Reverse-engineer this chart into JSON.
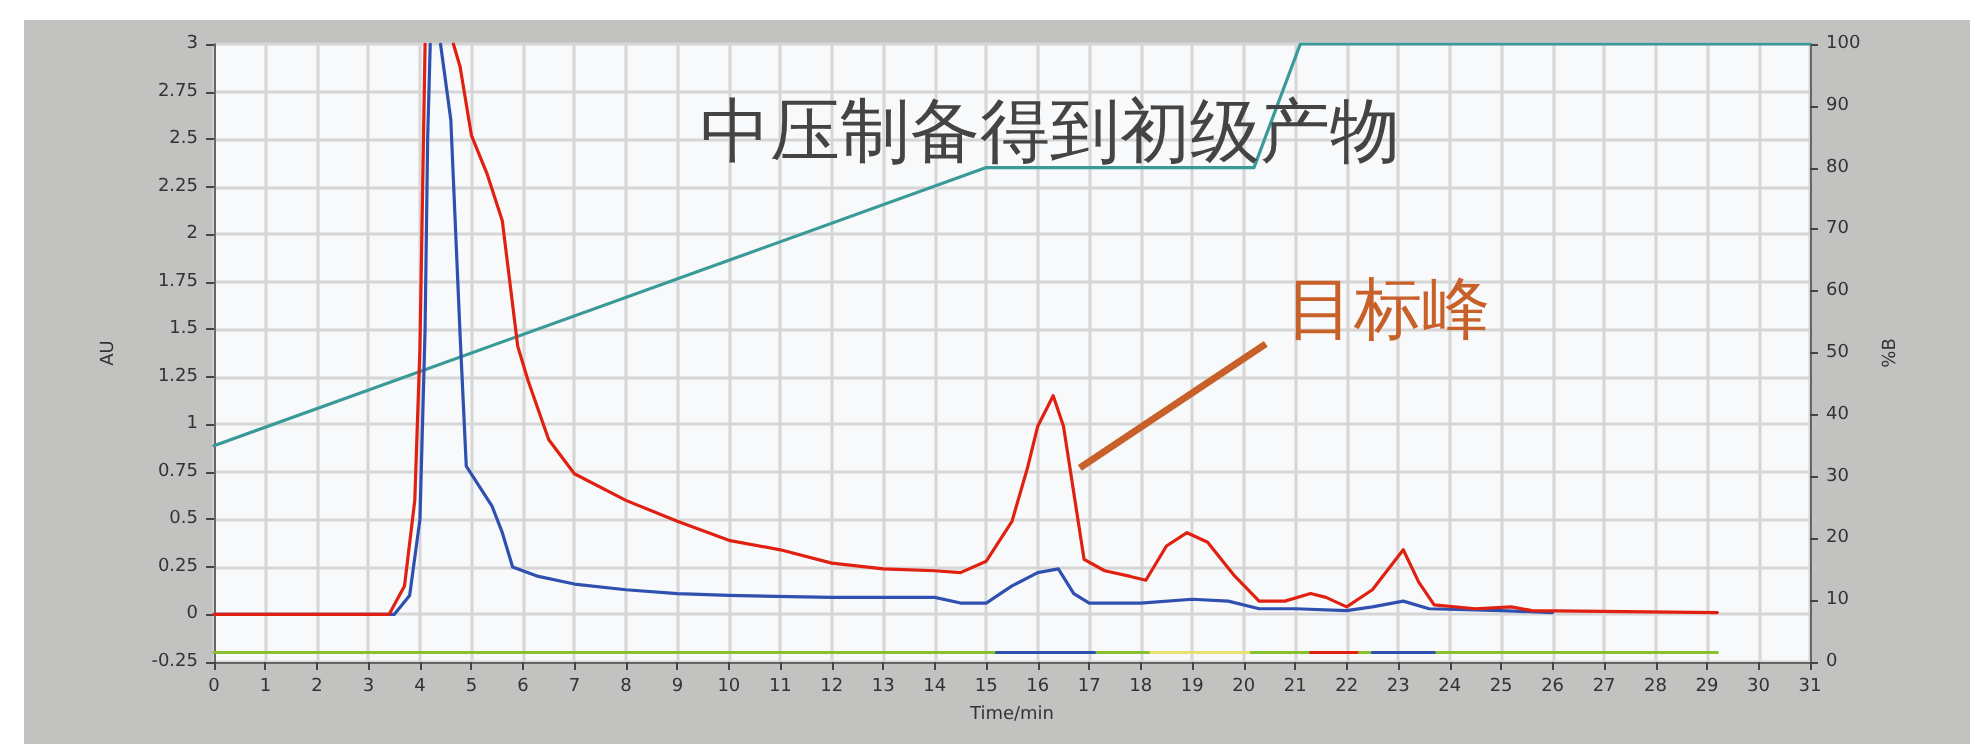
{
  "chart_data": {
    "type": "line",
    "title": "中压制备得到初级产物",
    "xlabel": "Time/min",
    "ylabel": "AU",
    "y2label": "%B",
    "xlim": [
      0,
      31
    ],
    "xticks": [
      0,
      1,
      2,
      3,
      4,
      5,
      6,
      7,
      8,
      9,
      10,
      11,
      12,
      13,
      14,
      15,
      16,
      17,
      18,
      19,
      20,
      21,
      22,
      23,
      24,
      25,
      26,
      27,
      28,
      29,
      30,
      31
    ],
    "ylim": [
      -0.25,
      3
    ],
    "yticks": [
      -0.25,
      0,
      0.25,
      0.5,
      0.75,
      1,
      1.25,
      1.5,
      1.75,
      2,
      2.25,
      2.5,
      2.75,
      3
    ],
    "y2lim": [
      0,
      100
    ],
    "y2ticks": [
      0,
      10,
      20,
      30,
      40,
      50,
      60,
      70,
      80,
      90,
      100
    ],
    "grid": true,
    "annotations": [
      {
        "text": "目标峰",
        "x": 16.7,
        "y": 0.75
      }
    ],
    "series": [
      {
        "color": "#3a9a98",
        "axis": "y2",
        "x": [
          0,
          15,
          20.2,
          21.1,
          31
        ],
        "values": [
          35,
          80,
          80,
          100,
          100
        ]
      },
      {
        "color": "#88c030",
        "x": [
          0,
          15.2,
          15.21,
          17.1,
          18.2,
          18.21,
          20.1,
          21.3,
          21.31,
          22.2,
          22.5,
          22.51,
          23.7,
          29.2
        ],
        "values": [
          -0.2,
          -0.2,
          null,
          -0.2,
          -0.2,
          null,
          -0.2,
          -0.2,
          null,
          -0.2,
          -0.2,
          null,
          -0.2,
          -0.2
        ]
      },
      {
        "color": "#3050b0",
        "x": [
          15.2,
          17.1
        ],
        "values": [
          -0.2,
          -0.2
        ]
      },
      {
        "color": "#e8e070",
        "x": [
          18.2,
          20.1
        ],
        "values": [
          -0.2,
          -0.2
        ]
      },
      {
        "color": "#e02010",
        "x": [
          21.3,
          22.2
        ],
        "values": [
          -0.2,
          -0.2
        ]
      },
      {
        "color": "#3050b0",
        "x": [
          22.5,
          23.7
        ],
        "values": [
          -0.2,
          -0.2
        ]
      },
      {
        "color": "#3050b0",
        "x": [
          0,
          3.5,
          3.8,
          4.0,
          4.1,
          4.15,
          4.2,
          4.3,
          4.4,
          4.6,
          4.78,
          4.9,
          5.4,
          5.6,
          5.8,
          6.3,
          7,
          8,
          9,
          10,
          12,
          14,
          14.5,
          15,
          15.5,
          16,
          16.4,
          16.7,
          17,
          18,
          19,
          19.7,
          20.3,
          21,
          22,
          22.5,
          23.1,
          23.6,
          25,
          26
        ],
        "values": [
          0,
          0,
          0.1,
          0.5,
          1.5,
          2.5,
          3,
          null,
          3,
          2.6,
          1.47,
          0.78,
          0.57,
          0.43,
          0.25,
          0.2,
          0.16,
          0.13,
          0.11,
          0.1,
          0.09,
          0.09,
          0.06,
          0.06,
          0.15,
          0.22,
          0.24,
          0.11,
          0.06,
          0.06,
          0.08,
          0.07,
          0.03,
          0.03,
          0.02,
          0.04,
          0.07,
          0.03,
          0.02,
          0.01
        ]
      },
      {
        "color": "#e02010",
        "x": [
          0,
          3.4,
          3.7,
          3.9,
          4.0,
          4.05,
          4.1,
          4.3,
          4.65,
          4.78,
          5.0,
          5.3,
          5.6,
          5.9,
          6.1,
          6.5,
          7,
          8,
          9,
          10,
          11,
          12,
          13,
          14,
          14.5,
          15,
          15.5,
          15.8,
          16,
          16.3,
          16.5,
          16.7,
          16.9,
          17.3,
          17.8,
          18.1,
          18.5,
          18.9,
          19.3,
          19.8,
          20.3,
          20.8,
          21.3,
          21.6,
          22,
          22.5,
          23.1,
          23.4,
          23.7,
          24.5,
          25.2,
          25.6,
          29.2
        ],
        "values": [
          0,
          0,
          0.15,
          0.6,
          1.4,
          2.2,
          3,
          null,
          3,
          2.88,
          2.52,
          2.32,
          2.07,
          1.41,
          1.23,
          0.92,
          0.74,
          0.6,
          0.49,
          0.39,
          0.34,
          0.27,
          0.24,
          0.23,
          0.22,
          0.28,
          0.49,
          0.77,
          0.99,
          1.15,
          0.99,
          0.64,
          0.29,
          0.23,
          0.2,
          0.18,
          0.36,
          0.43,
          0.38,
          0.21,
          0.07,
          0.07,
          0.11,
          0.09,
          0.04,
          0.13,
          0.34,
          0.17,
          0.05,
          0.03,
          0.04,
          0.02,
          0.01
        ]
      }
    ]
  }
}
